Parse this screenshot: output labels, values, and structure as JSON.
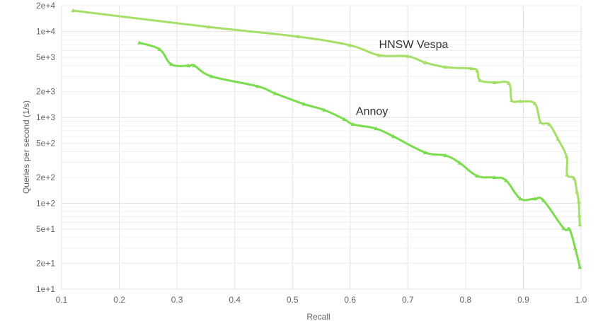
{
  "chart_data": {
    "type": "line",
    "xlabel": "Recall",
    "ylabel": "Queries per second (1/s)",
    "x_scale": "linear",
    "y_scale": "log",
    "xlim": [
      0.1,
      1.0
    ],
    "ylim": [
      10,
      20000
    ],
    "grid": true,
    "legend": "none",
    "x_ticks": [
      "0.1",
      "0.2",
      "0.3",
      "0.4",
      "0.5",
      "0.6",
      "0.7",
      "0.8",
      "0.9",
      "1.0"
    ],
    "y_ticks": [
      "1e+1",
      "2e+1",
      "5e+1",
      "1e+2",
      "2e+2",
      "5e+2",
      "1e+3",
      "2e+3",
      "5e+3",
      "1e+4",
      "2e+4"
    ],
    "series": [
      {
        "name": "HNSW Vespa",
        "color": "#a6df68",
        "points": [
          [
            0.12,
            17500
          ],
          [
            0.355,
            11300
          ],
          [
            0.51,
            8700
          ],
          [
            0.6,
            6900
          ],
          [
            0.65,
            5300
          ],
          [
            0.7,
            5150
          ],
          [
            0.73,
            4350
          ],
          [
            0.765,
            3850
          ],
          [
            0.81,
            3700
          ],
          [
            0.82,
            3500
          ],
          [
            0.825,
            2700
          ],
          [
            0.85,
            2550
          ],
          [
            0.875,
            2500
          ],
          [
            0.88,
            1580
          ],
          [
            0.895,
            1540
          ],
          [
            0.92,
            1450
          ],
          [
            0.93,
            880
          ],
          [
            0.945,
            830
          ],
          [
            0.96,
            560
          ],
          [
            0.975,
            350
          ],
          [
            0.976,
            215
          ],
          [
            0.988,
            195
          ],
          [
            0.993,
            135
          ],
          [
            0.996,
            105
          ],
          [
            0.997,
            72
          ],
          [
            0.998,
            56
          ]
        ]
      },
      {
        "name": "Annoy",
        "color": "#7bdc4e",
        "points": [
          [
            0.235,
            7400
          ],
          [
            0.27,
            6200
          ],
          [
            0.29,
            4150
          ],
          [
            0.32,
            4000
          ],
          [
            0.33,
            4000
          ],
          [
            0.36,
            3000
          ],
          [
            0.44,
            2300
          ],
          [
            0.47,
            1900
          ],
          [
            0.52,
            1430
          ],
          [
            0.555,
            1220
          ],
          [
            0.59,
            950
          ],
          [
            0.605,
            830
          ],
          [
            0.645,
            740
          ],
          [
            0.675,
            600
          ],
          [
            0.73,
            390
          ],
          [
            0.765,
            360
          ],
          [
            0.79,
            295
          ],
          [
            0.82,
            208
          ],
          [
            0.85,
            200
          ],
          [
            0.87,
            185
          ],
          [
            0.895,
            113
          ],
          [
            0.92,
            113
          ],
          [
            0.935,
            108
          ],
          [
            0.97,
            51
          ],
          [
            0.98,
            50
          ],
          [
            0.99,
            30
          ],
          [
            0.998,
            18
          ]
        ]
      }
    ],
    "annotations": [
      {
        "text": "HNSW Vespa",
        "x": 0.65,
        "y": 6400
      },
      {
        "text": "Annoy",
        "x": 0.61,
        "y": 1070
      }
    ]
  }
}
